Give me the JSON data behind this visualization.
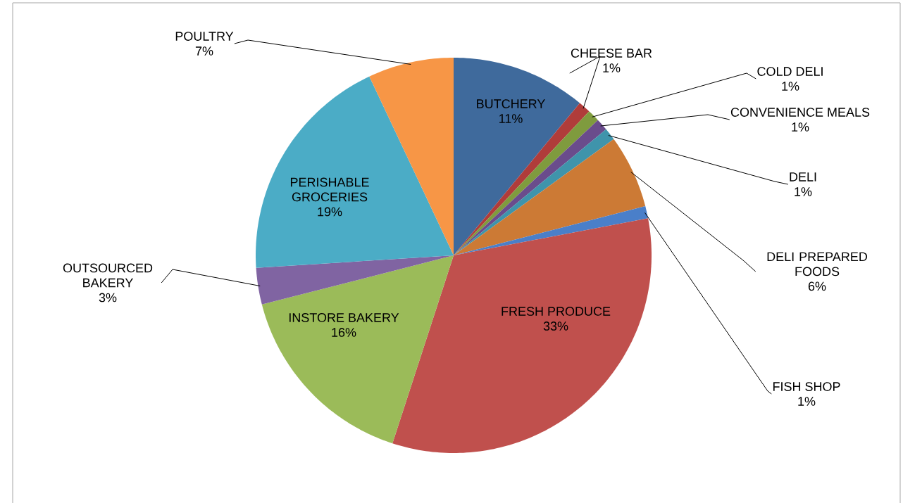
{
  "chart_data": {
    "type": "pie",
    "categories": [
      "BUTCHERY",
      "CHEESE BAR",
      "COLD DELI",
      "CONVENIENCE MEALS",
      "DELI",
      "DELI PREPARED FOODS",
      "FISH SHOP",
      "FRESH PRODUCE",
      "INSTORE BAKERY",
      "OUTSOURCED BAKERY",
      "PERISHABLE GROCERIES",
      "POULTRY"
    ],
    "values": [
      11,
      1,
      1,
      1,
      1,
      6,
      1,
      33,
      16,
      3,
      19,
      7
    ],
    "value_labels": [
      "11%",
      "1%",
      "1%",
      "1%",
      "1%",
      "6%",
      "1%",
      "33%",
      "16%",
      "3%",
      "19%",
      "7%"
    ],
    "colors": [
      "#3f6a9c",
      "#b03c3a",
      "#7f9b3e",
      "#6a4c8c",
      "#3f94ab",
      "#cc7a35",
      "#4a7fc9",
      "#c0504d",
      "#9bbb59",
      "#8064a2",
      "#4bacc6",
      "#f79646"
    ]
  }
}
